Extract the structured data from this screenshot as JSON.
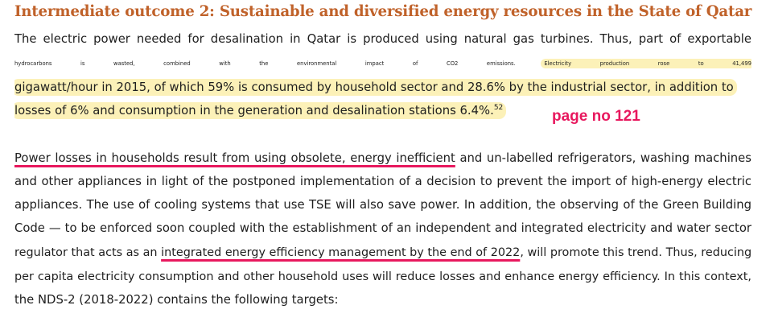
{
  "heading": "Intermediate outcome 2: Sustainable and diversified energy resources in the State of Qatar",
  "colors": {
    "heading": "#c0622a",
    "highlight": "#fcf1b8",
    "annotation": "#e8185e",
    "underline": "#e8185e"
  },
  "paragraph1": {
    "line1": "The electric power needed for desalination in Qatar is produced using natural gas turbines. Thus, part of exportable",
    "line2_plain": "hydrocarbons is wasted, combined with the environmental impact of CO2 emissions.",
    "line2_highlight": "Electricity production rose to 41,499",
    "line3_highlight": "gigawatt/hour in 2015, of which 59% is consumed by household sector and 28.6% by the industrial sector, in addition to",
    "line4_highlight": "losses of 6% and consumption in the generation and desalination stations 6.4%.",
    "footnote": "52"
  },
  "annotation": "page no 121",
  "paragraph2": {
    "line1_underlined": "Power losses in households result from using obsolete, energy inefficient",
    "line1_rest": " and un-labelled refrigerators, washing machines",
    "line2": "and other appliances in light of the postponed implementation of a decision to prevent the import of high-energy electric",
    "line3": "appliances. The use of cooling systems that use TSE will also save power. In addition, the observing of the Green Building",
    "line4": "Code — to be enforced soon coupled with the establishment of an independent and integrated electricity and water sector",
    "line5_before": "regulator that acts as an ",
    "line5_underlined": "integrated energy efficiency management by the end of 2022",
    "line5_after": ", will promote this trend. Thus, reducing",
    "line6": "per capita electricity consumption and other household uses will reduce losses and enhance energy efficiency. In this context,",
    "line7": "the NDS-2 (2018-2022) contains the following targets:"
  }
}
